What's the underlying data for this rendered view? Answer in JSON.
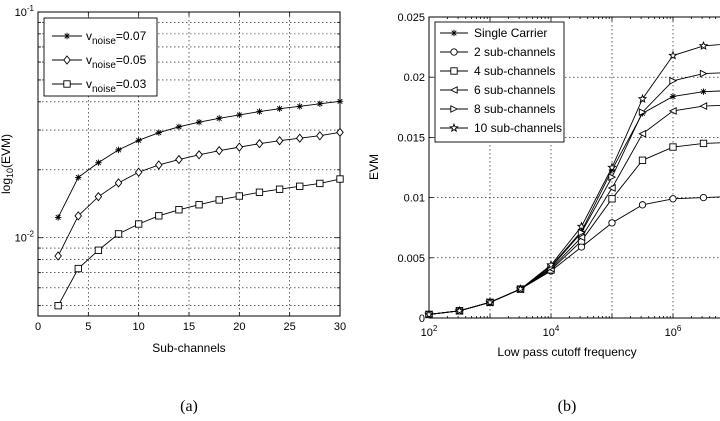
{
  "chart_data": [
    {
      "type": "line",
      "caption": "(a)",
      "xlabel": "Sub-channels",
      "ylabel": "log10(EVM)",
      "xlim": [
        0,
        30
      ],
      "ylim": [
        0.0045,
        0.1
      ],
      "yscale": "log",
      "grid": true,
      "legend_position": "top-left",
      "x_ticks": [
        "0",
        "5",
        "10",
        "15",
        "20",
        "25",
        "30"
      ],
      "y_ticks": [
        "10-2",
        "10-1"
      ],
      "x": [
        2,
        4,
        6,
        8,
        10,
        12,
        14,
        16,
        18,
        20,
        22,
        24,
        26,
        28,
        30
      ],
      "series": [
        {
          "name": "vnoise=0.07",
          "noise_value": "0.07",
          "marker": "asterisk",
          "values": [
            0.0123,
            0.0185,
            0.0215,
            0.0245,
            0.027,
            0.0292,
            0.031,
            0.0325,
            0.0338,
            0.035,
            0.0362,
            0.0373,
            0.0382,
            0.0392,
            0.0402
          ]
        },
        {
          "name": "vnoise=0.05",
          "noise_value": "0.05",
          "marker": "diamond",
          "values": [
            0.0083,
            0.0125,
            0.0152,
            0.0175,
            0.0195,
            0.021,
            0.0222,
            0.0233,
            0.0243,
            0.0252,
            0.0261,
            0.0269,
            0.0276,
            0.0283,
            0.0293
          ]
        },
        {
          "name": "vnoise=0.03",
          "noise_value": "0.03",
          "marker": "square",
          "values": [
            0.005,
            0.0073,
            0.0088,
            0.0104,
            0.0115,
            0.0125,
            0.0133,
            0.014,
            0.0147,
            0.0153,
            0.0159,
            0.0164,
            0.0169,
            0.0174,
            0.0182
          ]
        }
      ]
    },
    {
      "type": "line",
      "caption": "(b)",
      "xlabel": "Low pass cutoff frequency",
      "ylabel": "EVM",
      "xscale": "log",
      "xlim": [
        100,
        10000000
      ],
      "ylim": [
        0,
        0.025
      ],
      "grid": true,
      "legend_position": "top-left",
      "x_ticks": [
        "102",
        "104",
        "106"
      ],
      "y_ticks": [
        "0",
        "0.005",
        "0.01",
        "0.015",
        "0.02",
        "0.025"
      ],
      "x": [
        100,
        316,
        1000,
        3162,
        10000,
        31623,
        100000,
        316228,
        1000000,
        3162278,
        10000000
      ],
      "series": [
        {
          "name": "Single Carrier",
          "marker": "asterisk",
          "values": [
            0.0003,
            0.0006,
            0.0013,
            0.0024,
            0.0043,
            0.0072,
            0.0123,
            0.017,
            0.0184,
            0.0188,
            0.0189
          ]
        },
        {
          "name": "2 sub-channels",
          "marker": "circle",
          "values": [
            0.0003,
            0.0006,
            0.0013,
            0.0024,
            0.0039,
            0.0059,
            0.0079,
            0.0094,
            0.0099,
            0.01,
            0.0101
          ]
        },
        {
          "name": "4 sub-channels",
          "marker": "square",
          "values": [
            0.0003,
            0.0006,
            0.0013,
            0.0024,
            0.004,
            0.0064,
            0.0099,
            0.0131,
            0.0142,
            0.0145,
            0.0146
          ]
        },
        {
          "name": "6 sub-channels",
          "marker": "triangle-left",
          "values": [
            0.0003,
            0.0006,
            0.0013,
            0.0024,
            0.0041,
            0.0067,
            0.0108,
            0.0153,
            0.0172,
            0.0176,
            0.0177
          ]
        },
        {
          "name": "8 sub-channels",
          "marker": "triangle-right",
          "values": [
            0.0003,
            0.0006,
            0.0013,
            0.0024,
            0.0042,
            0.0071,
            0.0117,
            0.0171,
            0.0197,
            0.0203,
            0.0204
          ]
        },
        {
          "name": "10 sub-channels",
          "marker": "pentagram",
          "values": [
            0.0003,
            0.0006,
            0.0013,
            0.0024,
            0.0044,
            0.0076,
            0.0125,
            0.0182,
            0.0218,
            0.0226,
            0.0228
          ]
        }
      ]
    }
  ]
}
